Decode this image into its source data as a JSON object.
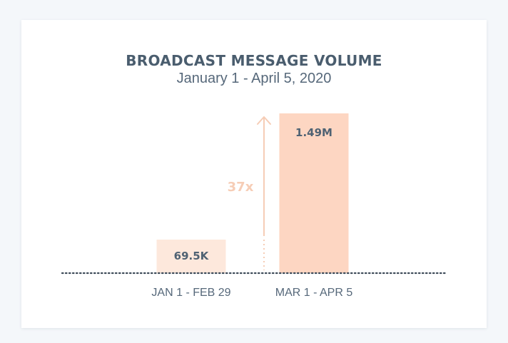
{
  "title": "BROADCAST MESSAGE VOLUME",
  "subtitle": "January 1 - April 5, 2020",
  "chart_data": {
    "type": "bar",
    "categories": [
      "JAN 1 - FEB 29",
      "MAR 1 - APR 5"
    ],
    "values": [
      69500,
      1490000
    ],
    "data_labels": [
      "69.5K",
      "1.49M"
    ],
    "annotation": "37x",
    "colors": [
      "#fde8dc",
      "#fdd6c2"
    ],
    "annotation_color": "#f6cdb6",
    "axis_color": "#3d4a58",
    "grid": false,
    "legend": "none"
  }
}
